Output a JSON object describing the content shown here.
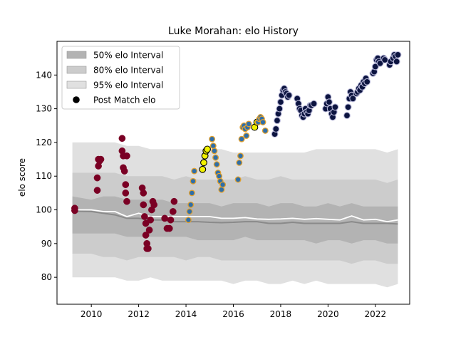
{
  "chart_data": {
    "type": "scatter",
    "title": "Luke Morahan: elo History",
    "xlabel": "",
    "ylabel": "elo score",
    "xlim": [
      2008.55,
      2023.45
    ],
    "ylim": [
      72,
      150
    ],
    "x_ticks": [
      2010,
      2012,
      2014,
      2016,
      2018,
      2020,
      2022
    ],
    "y_ticks": [
      80,
      90,
      100,
      110,
      120,
      130,
      140
    ],
    "grid": false,
    "legend": {
      "placement": "top-left",
      "entries": [
        "50% elo Interval",
        "80% elo Interval",
        "95% elo Interval",
        "Post Match elo"
      ]
    },
    "colors": {
      "band95": "#e0e0e0",
      "band80": "#cccccc",
      "band50": "#b3b3b3",
      "median_line": "#8a8a8a",
      "mean_line": "#ffffff",
      "period_a": "#7a0024",
      "period_b_fill": "#2f6ea8",
      "period_b_edge": "#e0a030",
      "period_c_fill": "#f2f200",
      "period_c_edge": "#000000",
      "period_d_fill": "#0c1440",
      "period_d_edge": "#b8b8d8"
    },
    "intervals": {
      "x": [
        2009.2,
        2010.0,
        2010.5,
        2011.0,
        2011.5,
        2012.0,
        2012.5,
        2013.0,
        2013.5,
        2014.0,
        2014.5,
        2015.0,
        2015.5,
        2016.0,
        2016.5,
        2017.0,
        2017.5,
        2018.0,
        2018.5,
        2019.0,
        2019.5,
        2020.0,
        2020.5,
        2021.0,
        2021.5,
        2022.0,
        2022.5,
        2022.95
      ],
      "p2_5": [
        80,
        80,
        80,
        80,
        79,
        79,
        80,
        79,
        79,
        79,
        79,
        79,
        79,
        78,
        79,
        79,
        78,
        78,
        79,
        78,
        79,
        78,
        78,
        78,
        78,
        78,
        77,
        78
      ],
      "p10": [
        87,
        87,
        86,
        86,
        85,
        86,
        86,
        86,
        86,
        85,
        86,
        86,
        85,
        85,
        85,
        85,
        85,
        85,
        85,
        85,
        85,
        85,
        85,
        84,
        85,
        85,
        84,
        84
      ],
      "p25": [
        93,
        93,
        93,
        93,
        92,
        92,
        92,
        92,
        92,
        92,
        91,
        91,
        91,
        91,
        92,
        91,
        91,
        91,
        91,
        91,
        90,
        91,
        91,
        90,
        91,
        91,
        90,
        90
      ],
      "p50": [
        99.6,
        99.5,
        99.0,
        98.5,
        97.5,
        97.5,
        97.0,
        97.0,
        96.5,
        96.5,
        96.5,
        96.3,
        96.2,
        96.3,
        96.5,
        96.5,
        96.0,
        96.0,
        96.3,
        96.0,
        96.0,
        96.0,
        96.0,
        96.5,
        96.0,
        96.0,
        96.0,
        95.8
      ],
      "mean": [
        100.0,
        100.0,
        99.5,
        99.5,
        98.0,
        99.0,
        98.0,
        98.0,
        98.0,
        98.0,
        98.0,
        98.0,
        97.5,
        97.5,
        97.7,
        97.3,
        97.2,
        97.3,
        97.5,
        97.2,
        97.4,
        97.2,
        97.0,
        98.2,
        97.0,
        97.2,
        96.5,
        97.0
      ],
      "p75": [
        104,
        103,
        104,
        104,
        103,
        103,
        103,
        103,
        102,
        102,
        102,
        102,
        101,
        102,
        102,
        102,
        101,
        102,
        102,
        101,
        101,
        102,
        101,
        102,
        101,
        101,
        101,
        101
      ],
      "p90": [
        111,
        111,
        111,
        111,
        110,
        110,
        110,
        110,
        109,
        110,
        109,
        109,
        109,
        109,
        110,
        109,
        109,
        110,
        109,
        109,
        109,
        109,
        109,
        109,
        109,
        109,
        108,
        109
      ],
      "p97_5": [
        120,
        120,
        120,
        120,
        119,
        119,
        118,
        118,
        118,
        118,
        118,
        118,
        118,
        117,
        117,
        117,
        117,
        117,
        117,
        117,
        118,
        118,
        118,
        118,
        118,
        118,
        117,
        118
      ]
    },
    "series": [
      {
        "name": "",
        "style": "period_a",
        "x": [
          2009.3,
          2009.3,
          2010.25,
          2010.25,
          2010.3,
          2010.3,
          2010.35,
          2010.4,
          2011.3,
          2011.3,
          2011.35,
          2011.35,
          2011.4,
          2011.45,
          2011.45,
          2011.5,
          2011.5,
          2012.15,
          2012.2,
          2012.2,
          2012.25,
          2012.3,
          2012.3,
          2012.35,
          2012.35,
          2012.4,
          2012.45,
          2012.5,
          2012.55,
          2012.6,
          2012.65,
          2013.1,
          2013.2,
          2013.3,
          2013.35,
          2013.45,
          2013.5
        ],
        "y": [
          100.5,
          99.8,
          105.8,
          109.5,
          113.0,
          115.0,
          114.5,
          115.0,
          121.2,
          117.5,
          116.0,
          112.5,
          111.5,
          107.5,
          105.0,
          102.5,
          116.0,
          106.5,
          105.0,
          101.5,
          98.0,
          96.0,
          92.5,
          90.0,
          88.5,
          88.5,
          94.0,
          97.0,
          100.0,
          102.5,
          101.5,
          97.5,
          94.5,
          94.5,
          97.0,
          99.5,
          102.5
        ]
      },
      {
        "name": "",
        "style": "period_b",
        "x": [
          2014.1,
          2014.15,
          2014.2,
          2014.25,
          2014.3,
          2014.35,
          2015.1,
          2015.15,
          2015.2,
          2015.25,
          2015.3,
          2015.35,
          2015.4,
          2015.45,
          2015.5,
          2015.55,
          2016.2,
          2016.25,
          2016.3,
          2016.35,
          2016.4,
          2016.45,
          2016.5,
          2016.55,
          2016.6,
          2016.65
        ],
        "y": [
          97.0,
          99.5,
          101.5,
          105.0,
          108.5,
          111.5,
          121.0,
          119.0,
          117.5,
          115.5,
          113.5,
          111.0,
          110.0,
          108.5,
          106.0,
          107.5,
          109.0,
          114.0,
          116.0,
          121.0,
          124.5,
          125.0,
          124.0,
          122.0,
          124.5,
          125.5
        ]
      },
      {
        "name": "",
        "style": "period_c",
        "x": [
          2014.7,
          2014.75,
          2014.8,
          2014.85,
          2014.9,
          2016.9,
          2017.0
        ],
        "y": [
          112.0,
          114.0,
          116.0,
          117.5,
          118.0,
          124.5,
          126.0
        ]
      },
      {
        "name": "",
        "style": "period_b",
        "x": [
          2017.05,
          2017.1,
          2017.15,
          2017.2,
          2017.25,
          2017.35
        ],
        "y": [
          126.0,
          127.0,
          127.5,
          127.0,
          126.0,
          123.5
        ]
      },
      {
        "name": "",
        "style": "period_d",
        "x": [
          2017.75,
          2017.8,
          2017.85,
          2017.9,
          2017.95,
          2018.0,
          2018.05,
          2018.1,
          2018.15,
          2018.2,
          2018.25,
          2018.3,
          2018.35,
          2018.7,
          2018.75,
          2018.8,
          2018.85,
          2018.9,
          2018.95,
          2019.0,
          2019.05,
          2019.1,
          2019.15,
          2019.2,
          2019.25,
          2019.3,
          2019.4,
          2019.9,
          2019.95,
          2020.0,
          2020.05,
          2020.1,
          2020.15,
          2020.2,
          2020.25,
          2020.3,
          2020.8,
          2020.85,
          2020.9,
          2020.95,
          2021.0,
          2021.05,
          2021.2,
          2021.25,
          2021.3,
          2021.35,
          2021.4,
          2021.45,
          2021.5,
          2021.55,
          2021.6,
          2021.65,
          2021.9,
          2021.95,
          2022.0,
          2022.05,
          2022.1,
          2022.15,
          2022.2,
          2022.35,
          2022.4,
          2022.6,
          2022.65,
          2022.75,
          2022.8,
          2022.85,
          2022.9,
          2022.95
        ],
        "y": [
          122.5,
          124.0,
          126.5,
          128.5,
          130.0,
          132.0,
          134.0,
          135.5,
          136.0,
          135.0,
          134.5,
          133.5,
          134.0,
          133.0,
          131.5,
          130.0,
          129.5,
          128.0,
          127.5,
          128.5,
          130.0,
          129.0,
          128.5,
          129.5,
          131.0,
          131.0,
          131.5,
          130.0,
          131.5,
          133.5,
          132.0,
          130.0,
          128.5,
          127.5,
          129.0,
          130.5,
          128.0,
          130.5,
          133.0,
          135.0,
          134.0,
          133.0,
          134.5,
          135.0,
          136.0,
          135.5,
          137.0,
          136.5,
          138.0,
          137.5,
          139.0,
          138.0,
          140.5,
          141.0,
          142.5,
          144.5,
          145.0,
          144.0,
          143.5,
          145.0,
          144.5,
          143.0,
          144.0,
          145.0,
          146.0,
          145.5,
          144.0,
          146.0
        ]
      }
    ]
  }
}
